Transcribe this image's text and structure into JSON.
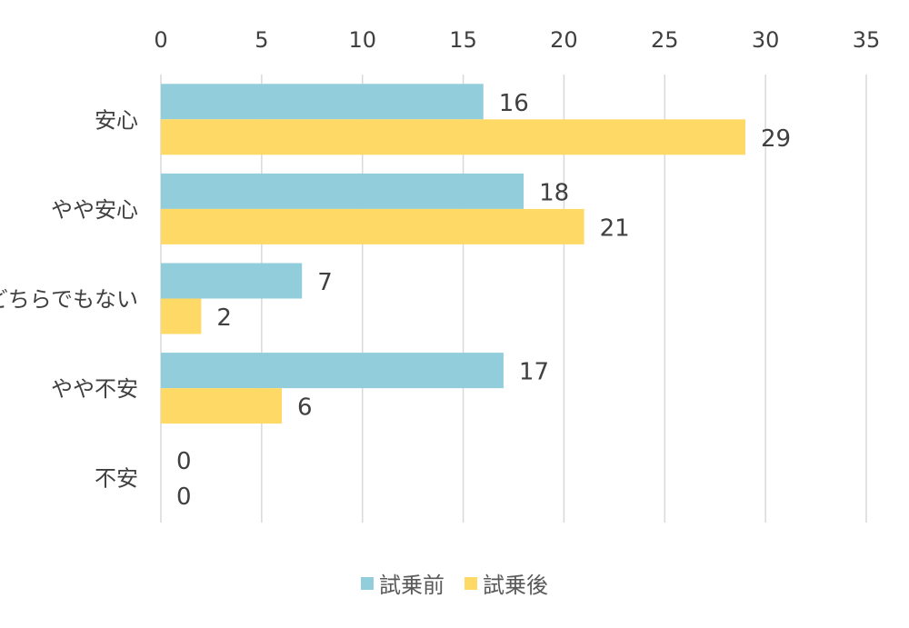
{
  "chart_data": {
    "type": "bar",
    "orientation": "horizontal",
    "categories": [
      "安心",
      "やや安心",
      "どちらでもない",
      "やや不安",
      "不安"
    ],
    "series": [
      {
        "name": "試乗前",
        "values": [
          16,
          18,
          7,
          17,
          0
        ],
        "color": "#92CDDC"
      },
      {
        "name": "試乗後",
        "values": [
          29,
          21,
          2,
          6,
          0
        ],
        "color": "#FFD966"
      }
    ],
    "xlim": [
      0,
      35
    ],
    "xticks": [
      0,
      5,
      10,
      15,
      20,
      25,
      30,
      35
    ],
    "xaxis_position": "top",
    "grid": true,
    "data_labels": true,
    "legend": "bottom",
    "title": "",
    "xlabel": "",
    "ylabel": ""
  }
}
